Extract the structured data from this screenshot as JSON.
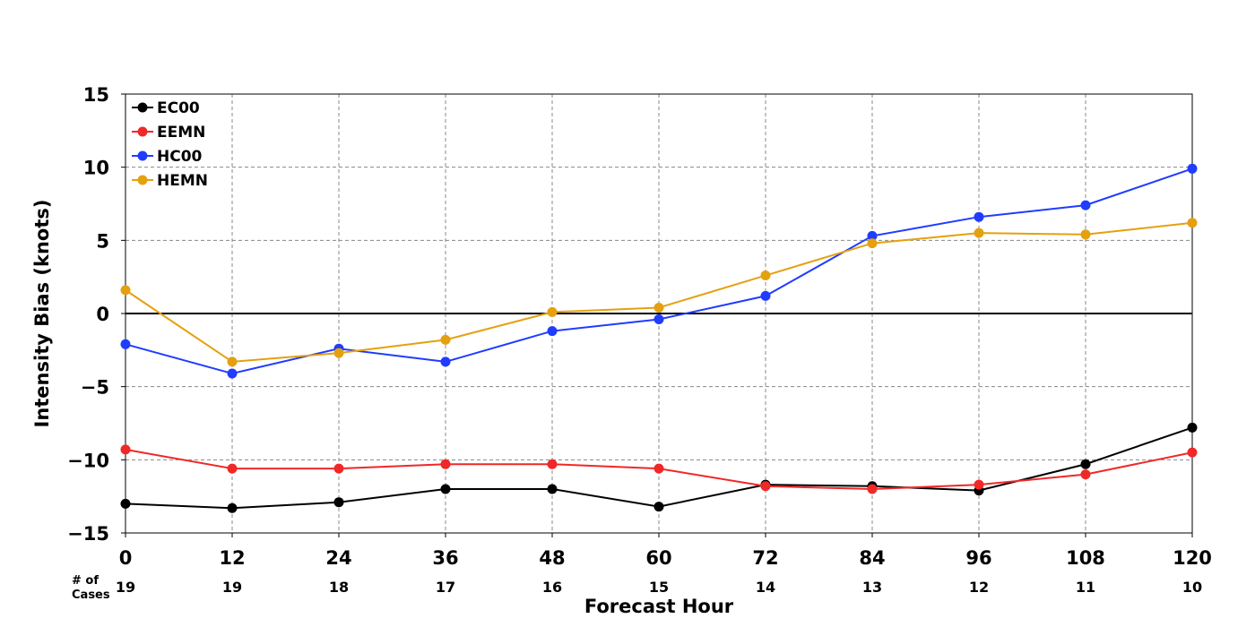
{
  "chart_data": {
    "type": "line",
    "xlabel": "Forecast Hour",
    "ylabel": "Intensity Bias (knots)",
    "x": [
      0,
      12,
      24,
      36,
      48,
      60,
      72,
      84,
      96,
      108,
      120
    ],
    "xticks": [
      "0",
      "12",
      "24",
      "36",
      "48",
      "60",
      "72",
      "84",
      "96",
      "108",
      "120"
    ],
    "ylim": [
      -15,
      15
    ],
    "yticks": [
      15,
      10,
      5,
      0,
      -5,
      -10,
      -15
    ],
    "ytick_labels": [
      "15",
      "10",
      "5",
      "0",
      "−5",
      "−10",
      "−15"
    ],
    "grid": true,
    "zero_line": true,
    "legend_position": "top-left",
    "cases_header_line1": "# of",
    "cases_header_line2": "Cases",
    "cases": [
      "19",
      "19",
      "18",
      "17",
      "16",
      "15",
      "14",
      "13",
      "12",
      "11",
      "10"
    ],
    "series": [
      {
        "name": "EC00",
        "color": "#000000",
        "values": [
          -13.0,
          -13.3,
          -12.9,
          -12.0,
          -12.0,
          -13.2,
          -11.7,
          -11.8,
          -12.1,
          -10.3,
          -7.8
        ]
      },
      {
        "name": "EEMN",
        "color": "#f02828",
        "values": [
          -9.3,
          -10.6,
          -10.6,
          -10.3,
          -10.3,
          -10.6,
          -11.8,
          -12.0,
          -11.7,
          -11.0,
          -9.5
        ]
      },
      {
        "name": "HC00",
        "color": "#1f3cff",
        "values": [
          -2.1,
          -4.1,
          -2.4,
          -3.3,
          -1.2,
          -0.4,
          1.2,
          5.3,
          6.6,
          7.4,
          9.9
        ]
      },
      {
        "name": "HEMN",
        "color": "#e5a010",
        "values": [
          1.6,
          -3.3,
          -2.7,
          -1.8,
          0.1,
          0.4,
          2.6,
          4.8,
          5.5,
          5.4,
          6.2
        ]
      }
    ]
  }
}
